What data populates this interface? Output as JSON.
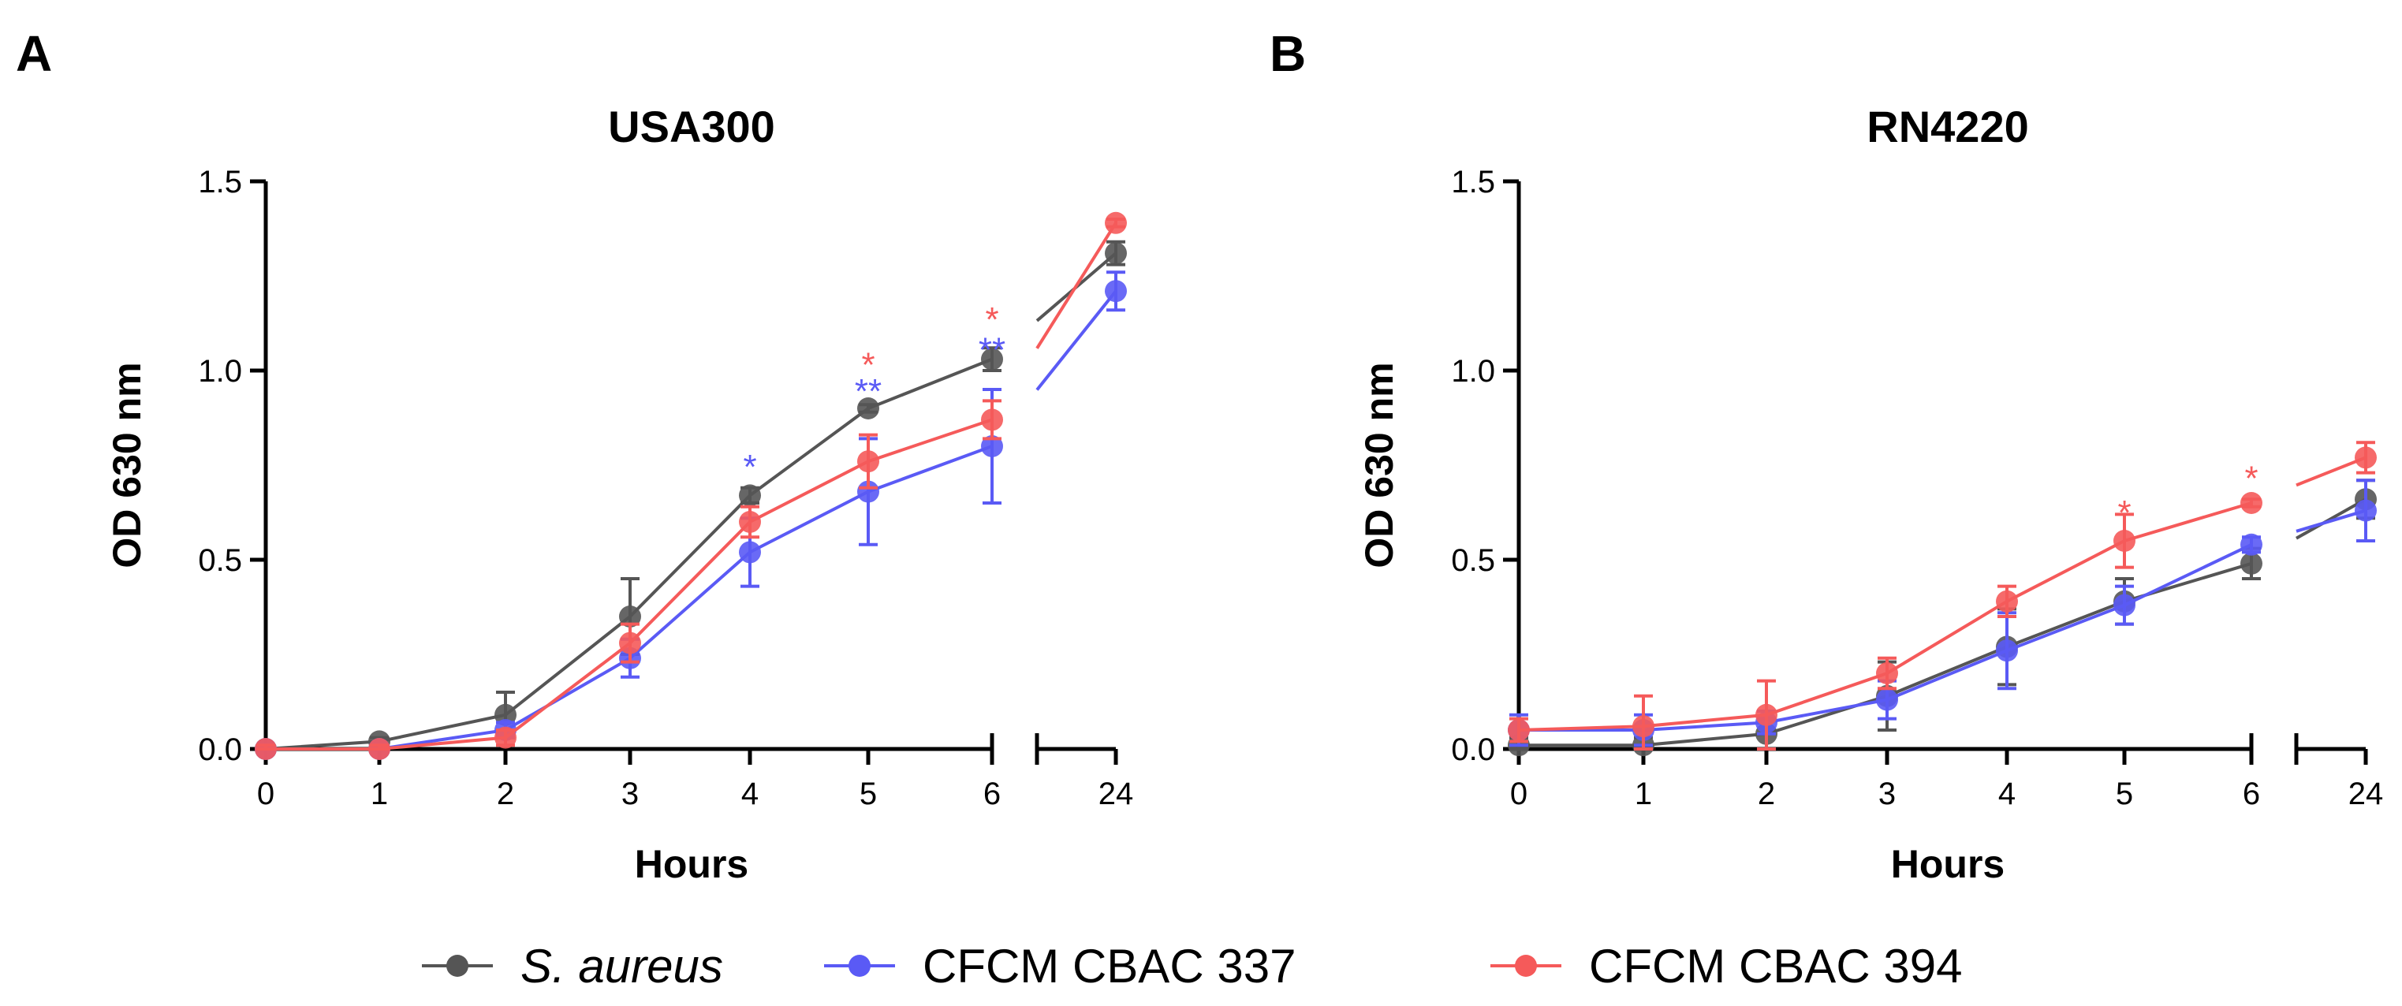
{
  "figure": {
    "panels": [
      {
        "letter": "A"
      },
      {
        "letter": "B"
      }
    ]
  },
  "legend": [
    {
      "name": "S. aureus",
      "color": "#555555",
      "italic": true
    },
    {
      "name": "CFCM CBAC 337",
      "color": "#5a5af5",
      "italic": false
    },
    {
      "name": "CFCM CBAC 394",
      "color": "#f55a5a",
      "italic": false
    }
  ],
  "chart_data": [
    {
      "type": "line",
      "title": "USA300",
      "xlabel": "Hours",
      "ylabel": "OD 630 nm",
      "x": [
        0,
        1,
        2,
        3,
        4,
        5,
        6,
        24
      ],
      "x_ticks": [
        "0",
        "1",
        "2",
        "3",
        "4",
        "5",
        "6",
        "24"
      ],
      "x_axis_break": "between 6 and 24",
      "ylim": [
        0,
        1.5
      ],
      "y_ticks": [
        "0.0",
        "0.5",
        "1.0",
        "1.5"
      ],
      "grid": false,
      "legend_position": "bottom",
      "series": [
        {
          "name": "S. aureus",
          "color": "#555555",
          "values": [
            0.0,
            0.02,
            0.09,
            0.35,
            0.67,
            0.9,
            1.03,
            1.31
          ],
          "errors": [
            0.01,
            0.01,
            0.06,
            0.1,
            0.02,
            0.01,
            0.03,
            0.03
          ]
        },
        {
          "name": "CFCM CBAC 337",
          "color": "#5a5af5",
          "values": [
            0.0,
            0.0,
            0.05,
            0.24,
            0.52,
            0.68,
            0.8,
            1.21
          ],
          "errors": [
            0.01,
            0.01,
            0.02,
            0.05,
            0.09,
            0.14,
            0.15,
            0.05
          ]
        },
        {
          "name": "CFCM CBAC 394",
          "color": "#f55a5a",
          "values": [
            0.0,
            0.0,
            0.03,
            0.28,
            0.6,
            0.76,
            0.87,
            1.39
          ],
          "errors": [
            0.01,
            0.01,
            0.02,
            0.05,
            0.04,
            0.07,
            0.05,
            0.01
          ]
        }
      ],
      "annotations": [
        {
          "x": 4,
          "text": "*",
          "color": "#5a5af5",
          "value": 0.76
        },
        {
          "x": 5,
          "text": "**",
          "color": "#5a5af5",
          "value": 0.96
        },
        {
          "x": 5,
          "text": "*",
          "color": "#f55a5a",
          "value": 1.03
        },
        {
          "x": 6,
          "text": "**",
          "color": "#5a5af5",
          "value": 1.07
        },
        {
          "x": 6,
          "text": "*",
          "color": "#f55a5a",
          "value": 1.15
        }
      ]
    },
    {
      "type": "line",
      "title": "RN4220",
      "xlabel": "Hours",
      "ylabel": "OD 630 nm",
      "x": [
        0,
        1,
        2,
        3,
        4,
        5,
        6,
        24
      ],
      "x_ticks": [
        "0",
        "1",
        "2",
        "3",
        "4",
        "5",
        "6",
        "24"
      ],
      "x_axis_break": "between 6 and 24",
      "ylim": [
        0,
        1.5
      ],
      "y_ticks": [
        "0.0",
        "0.5",
        "1.0",
        "1.5"
      ],
      "grid": false,
      "legend_position": "bottom",
      "series": [
        {
          "name": "S. aureus",
          "color": "#555555",
          "values": [
            0.01,
            0.01,
            0.04,
            0.14,
            0.27,
            0.39,
            0.49,
            0.66
          ],
          "errors": [
            0.02,
            0.02,
            0.04,
            0.09,
            0.1,
            0.06,
            0.04,
            0.05
          ]
        },
        {
          "name": "CFCM CBAC 337",
          "color": "#5a5af5",
          "values": [
            0.05,
            0.05,
            0.07,
            0.13,
            0.26,
            0.38,
            0.54,
            0.63
          ],
          "errors": [
            0.04,
            0.04,
            0.03,
            0.05,
            0.1,
            0.05,
            0.02,
            0.08
          ]
        },
        {
          "name": "CFCM CBAC 394",
          "color": "#f55a5a",
          "values": [
            0.05,
            0.06,
            0.09,
            0.2,
            0.39,
            0.55,
            0.65,
            0.77
          ],
          "errors": [
            0.03,
            0.08,
            0.09,
            0.04,
            0.04,
            0.07,
            0.01,
            0.04
          ]
        }
      ],
      "annotations": [
        {
          "x": 5,
          "text": "*",
          "color": "#f55a5a",
          "value": 0.64
        },
        {
          "x": 6,
          "text": "*",
          "color": "#f55a5a",
          "value": 0.73
        }
      ]
    }
  ]
}
